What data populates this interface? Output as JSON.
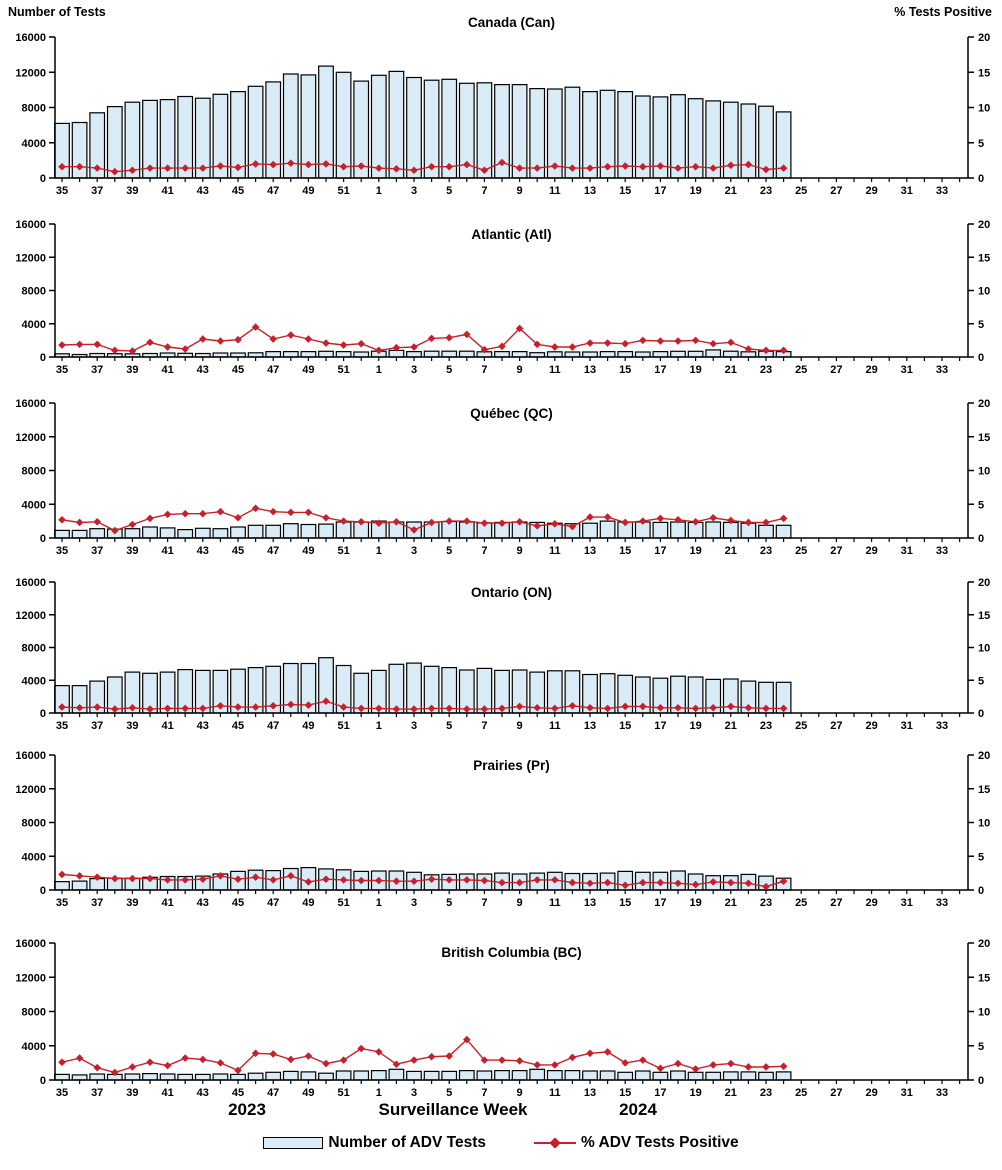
{
  "chart_data": {
    "type": "bar+line",
    "description_titles": {
      "left_axis_title": "Number of Tests",
      "right_axis_title": "% Tests Positive",
      "x_label": "Surveillance Week"
    },
    "left_axis_title": "Number of Tests",
    "right_axis_title": "% Tests Positive",
    "x_label": "Surveillance Week",
    "x_year_labels": [
      "2023",
      "2024"
    ],
    "legend": [
      "Number of ADV Tests",
      "% ADV Tests Positive"
    ],
    "ylim_left": [
      0,
      16000
    ],
    "yticks_left": [
      0,
      4000,
      8000,
      12000,
      16000
    ],
    "ylim_right": [
      0,
      20
    ],
    "yticks_right": [
      0,
      5,
      10,
      15,
      20
    ],
    "colors": {
      "bar_fill": "#D8EBF7",
      "bar_stroke": "#000000",
      "line": "#C8202A"
    },
    "categories": [
      35,
      36,
      37,
      38,
      39,
      40,
      41,
      42,
      43,
      44,
      45,
      46,
      47,
      48,
      49,
      50,
      51,
      52,
      1,
      2,
      3,
      4,
      5,
      6,
      7,
      8,
      9,
      10,
      11,
      12,
      13,
      14,
      15,
      16,
      17,
      18,
      19,
      20,
      21,
      22,
      23,
      24,
      25,
      26,
      27,
      28,
      29,
      30,
      31,
      32,
      33,
      34
    ],
    "panels": [
      {
        "title": "Canada (Can)",
        "tests": [
          6200,
          6300,
          7400,
          8100,
          8600,
          8800,
          8900,
          9250,
          9050,
          9500,
          9800,
          10400,
          10900,
          11800,
          11700,
          12700,
          12000,
          11000,
          11650,
          12100,
          11400,
          11100,
          11200,
          10750,
          10800,
          10600,
          10600,
          10150,
          10100,
          10300,
          9800,
          9950,
          9800,
          9300,
          9200,
          9450,
          9000,
          8750,
          8600,
          8400,
          8150,
          7500
        ],
        "pct_positive": [
          1.6,
          1.6,
          1.4,
          0.9,
          1.1,
          1.4,
          1.4,
          1.4,
          1.4,
          1.7,
          1.5,
          2.0,
          1.9,
          2.1,
          1.9,
          2.0,
          1.6,
          1.7,
          1.4,
          1.3,
          1.1,
          1.6,
          1.6,
          1.9,
          1.1,
          2.2,
          1.4,
          1.4,
          1.7,
          1.4,
          1.4,
          1.6,
          1.7,
          1.6,
          1.7,
          1.4,
          1.6,
          1.4,
          1.8,
          1.9,
          1.2,
          1.4
        ]
      },
      {
        "title": "Atlantic (Atl)",
        "tests": [
          380,
          300,
          420,
          400,
          380,
          420,
          480,
          450,
          420,
          480,
          480,
          500,
          650,
          650,
          650,
          680,
          650,
          600,
          700,
          800,
          650,
          700,
          700,
          700,
          620,
          650,
          650,
          520,
          620,
          600,
          600,
          650,
          650,
          600,
          650,
          680,
          680,
          850,
          700,
          620,
          700,
          650
        ],
        "pct_positive": [
          1.8,
          1.9,
          1.9,
          1.0,
          0.9,
          2.2,
          1.5,
          1.2,
          2.7,
          2.4,
          2.6,
          4.5,
          2.7,
          3.3,
          2.7,
          2.1,
          1.8,
          2.0,
          1.0,
          1.4,
          1.5,
          2.8,
          2.9,
          3.4,
          1.1,
          1.6,
          4.3,
          1.9,
          1.5,
          1.5,
          2.1,
          2.1,
          2.0,
          2.5,
          2.4,
          2.4,
          2.5,
          2.0,
          2.2,
          1.2,
          1.0,
          1.0
        ]
      },
      {
        "title": "Québec (QC)",
        "tests": [
          900,
          900,
          1100,
          1050,
          1100,
          1300,
          1200,
          1000,
          1150,
          1100,
          1300,
          1500,
          1500,
          1700,
          1600,
          1650,
          1900,
          1900,
          2000,
          1900,
          1900,
          1900,
          1950,
          1900,
          1800,
          1850,
          1900,
          1850,
          1750,
          1700,
          1750,
          2000,
          1900,
          1900,
          1850,
          1900,
          1850,
          1900,
          1850,
          1750,
          1500,
          1500
        ],
        "pct_positive": [
          2.7,
          2.3,
          2.4,
          1.1,
          2.0,
          2.9,
          3.5,
          3.6,
          3.6,
          3.9,
          3.0,
          4.4,
          3.9,
          3.8,
          3.8,
          3.0,
          2.5,
          2.4,
          2.2,
          2.4,
          1.2,
          2.3,
          2.5,
          2.5,
          2.2,
          2.2,
          2.4,
          1.8,
          2.1,
          1.7,
          3.1,
          3.1,
          2.3,
          2.5,
          2.9,
          2.7,
          2.4,
          3.0,
          2.6,
          2.3,
          2.3,
          2.9
        ]
      },
      {
        "title": "Ontario (ON)",
        "tests": [
          3350,
          3350,
          3900,
          4400,
          5000,
          4850,
          5000,
          5300,
          5200,
          5200,
          5350,
          5550,
          5700,
          6050,
          6050,
          6750,
          5800,
          4850,
          5200,
          5950,
          6100,
          5700,
          5550,
          5250,
          5450,
          5200,
          5250,
          5000,
          5150,
          5150,
          4700,
          4800,
          4600,
          4400,
          4250,
          4500,
          4400,
          4100,
          4150,
          3900,
          3750,
          3750
        ],
        "pct_positive": [
          0.9,
          0.8,
          0.9,
          0.6,
          0.8,
          0.6,
          0.7,
          0.7,
          0.7,
          1.1,
          0.9,
          0.9,
          1.1,
          1.3,
          1.2,
          1.8,
          0.9,
          0.7,
          0.7,
          0.6,
          0.6,
          0.7,
          0.7,
          0.6,
          0.6,
          0.7,
          1.0,
          0.8,
          0.7,
          1.1,
          0.8,
          0.7,
          1.0,
          1.0,
          0.8,
          0.8,
          0.7,
          0.8,
          1.0,
          0.8,
          0.7,
          0.7
        ]
      },
      {
        "title": "Prairies (Pr)",
        "tests": [
          1000,
          1050,
          1350,
          1400,
          1400,
          1500,
          1600,
          1600,
          1650,
          1900,
          2200,
          2350,
          2300,
          2550,
          2650,
          2500,
          2400,
          2200,
          2250,
          2250,
          2100,
          1800,
          1850,
          1900,
          1900,
          2000,
          1900,
          2000,
          2100,
          1950,
          1950,
          2000,
          2200,
          2100,
          2100,
          2250,
          1900,
          1700,
          1700,
          1850,
          1650,
          1400
        ],
        "pct_positive": [
          2.3,
          2.1,
          1.9,
          1.7,
          1.7,
          1.7,
          1.5,
          1.5,
          1.6,
          2.1,
          1.6,
          1.9,
          1.5,
          2.1,
          1.2,
          1.6,
          1.5,
          1.4,
          1.4,
          1.3,
          1.3,
          1.6,
          1.5,
          1.5,
          1.4,
          1.1,
          1.1,
          1.5,
          1.5,
          1.1,
          1.0,
          1.1,
          0.7,
          1.1,
          1.1,
          1.0,
          0.8,
          1.2,
          1.1,
          1.0,
          0.5,
          1.3
        ]
      },
      {
        "title": "British Columbia (BC)",
        "tests": [
          650,
          600,
          700,
          650,
          700,
          750,
          700,
          650,
          650,
          700,
          650,
          800,
          900,
          1000,
          950,
          800,
          1050,
          1050,
          1100,
          1250,
          1000,
          1000,
          1000,
          1100,
          1050,
          1100,
          1100,
          1250,
          1100,
          1100,
          1050,
          1050,
          900,
          1050,
          900,
          1050,
          900,
          900,
          950,
          950,
          900,
          950
        ],
        "pct_positive": [
          2.6,
          3.2,
          1.8,
          1.1,
          1.9,
          2.6,
          2.1,
          3.2,
          3.0,
          2.5,
          1.4,
          3.9,
          3.8,
          3.0,
          3.5,
          2.4,
          2.9,
          4.6,
          4.1,
          2.3,
          2.9,
          3.4,
          3.5,
          5.9,
          2.9,
          2.9,
          2.8,
          2.2,
          2.2,
          3.3,
          3.9,
          4.1,
          2.5,
          2.9,
          1.7,
          2.4,
          1.6,
          2.2,
          2.4,
          1.9,
          1.9,
          2.0
        ]
      }
    ]
  }
}
